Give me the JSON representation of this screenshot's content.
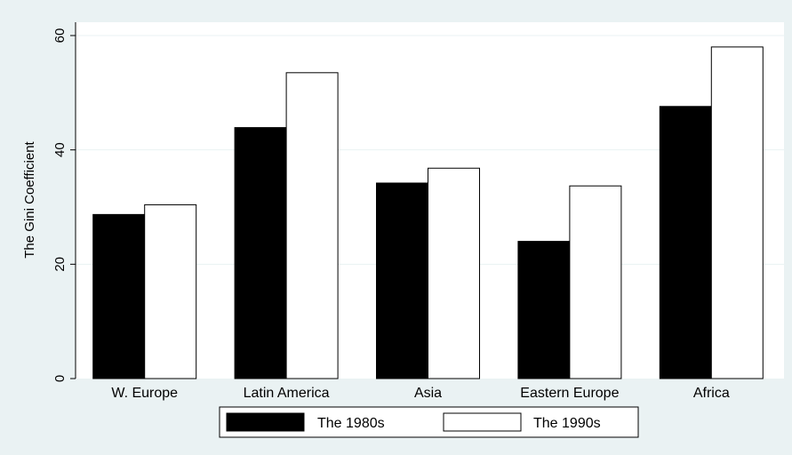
{
  "chart_data": {
    "type": "bar",
    "title": "",
    "xlabel": "",
    "ylabel": "The Gini Coefficient",
    "categories": [
      "W. Europe",
      "Latin America",
      "Asia",
      "Eastern Europe",
      "Africa"
    ],
    "series": [
      {
        "name": "The 1980s",
        "color": "#000000",
        "values": [
          28.7,
          43.9,
          34.2,
          24.0,
          47.6
        ]
      },
      {
        "name": "The 1990s",
        "color": "#ffffff",
        "values": [
          30.4,
          53.5,
          36.8,
          33.7,
          58.0
        ]
      }
    ],
    "ylim": [
      0,
      60
    ],
    "yticks": [
      0,
      20,
      40,
      60
    ],
    "grid": true,
    "legend_position": "bottom",
    "colors": {
      "background": "#eaf2f3",
      "plot_area": "#ffffff",
      "gridline": "#eaf2f3"
    }
  }
}
